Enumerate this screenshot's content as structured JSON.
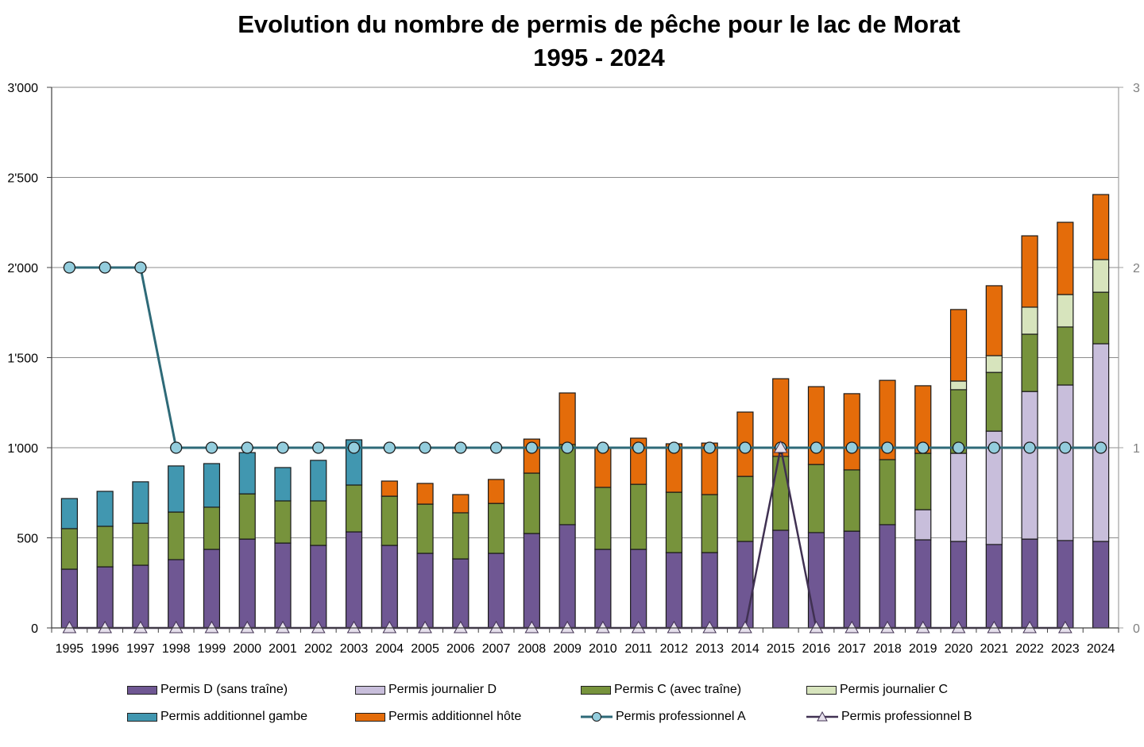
{
  "chart_data": {
    "type": "bar",
    "stacked": true,
    "title": "Evolution du nombre de permis de pêche pour le lac de Morat",
    "subtitle": "1995 - 2024",
    "xlabel": "",
    "ylabel": "",
    "ylim": [
      0,
      3000
    ],
    "y_ticks": [
      "0",
      "500",
      "1'000",
      "1'500",
      "2'000",
      "2'500",
      "3'000"
    ],
    "y_tick_values": [
      0,
      500,
      1000,
      1500,
      2000,
      2500,
      3000
    ],
    "y2lim": [
      0,
      3
    ],
    "y2_ticks": [
      "0",
      "1",
      "2",
      "3"
    ],
    "y2_tick_values": [
      0,
      1,
      2,
      3
    ],
    "grid": true,
    "legend_position": "bottom",
    "categories": [
      "1995",
      "1996",
      "1997",
      "1998",
      "1999",
      "2000",
      "2001",
      "2002",
      "2003",
      "2004",
      "2005",
      "2006",
      "2007",
      "2008",
      "2009",
      "2010",
      "2011",
      "2012",
      "2013",
      "2014",
      "2015",
      "2016",
      "2017",
      "2018",
      "2019",
      "2020",
      "2021",
      "2022",
      "2023",
      "2024"
    ],
    "series": [
      {
        "name": "Permis D (sans traîne)",
        "kind": "bar",
        "axis": "left",
        "color": "#6f5793",
        "values": [
          326,
          339,
          348,
          379,
          436,
          493,
          471,
          458,
          533,
          458,
          414,
          383,
          414,
          524,
          573,
          436,
          436,
          418,
          418,
          480,
          542,
          529,
          537,
          573,
          489,
          480,
          463,
          493,
          485,
          480
        ]
      },
      {
        "name": "Permis journalier D",
        "kind": "bar",
        "axis": "left",
        "color": "#c8bedb",
        "values": [
          0,
          0,
          0,
          0,
          0,
          0,
          0,
          0,
          0,
          0,
          0,
          0,
          0,
          0,
          0,
          0,
          0,
          0,
          0,
          0,
          0,
          0,
          0,
          0,
          167,
          489,
          629,
          819,
          863,
          1097
        ]
      },
      {
        "name": "Permis C (avec traîne)",
        "kind": "bar",
        "axis": "left",
        "color": "#77933c",
        "values": [
          225,
          225,
          233,
          264,
          234,
          251,
          234,
          247,
          260,
          273,
          273,
          256,
          277,
          335,
          445,
          344,
          361,
          335,
          322,
          361,
          410,
          378,
          340,
          361,
          313,
          353,
          326,
          318,
          322,
          286
        ]
      },
      {
        "name": "Permis journalier C",
        "kind": "bar",
        "axis": "left",
        "color": "#d7e4bd",
        "values": [
          0,
          0,
          0,
          0,
          0,
          0,
          0,
          0,
          0,
          0,
          0,
          0,
          0,
          0,
          0,
          0,
          0,
          0,
          0,
          0,
          0,
          0,
          0,
          0,
          0,
          48,
          93,
          150,
          180,
          181
        ]
      },
      {
        "name": "Permis additionnel gambe",
        "kind": "bar",
        "axis": "left",
        "color": "#4197b0",
        "values": [
          167,
          194,
          230,
          256,
          242,
          229,
          185,
          225,
          251,
          0,
          0,
          0,
          0,
          0,
          0,
          0,
          0,
          0,
          0,
          0,
          0,
          0,
          0,
          0,
          0,
          0,
          0,
          0,
          0,
          0
        ]
      },
      {
        "name": "Permis additionnel hôte",
        "kind": "bar",
        "axis": "left",
        "color": "#e46c0a",
        "values": [
          0,
          0,
          0,
          0,
          0,
          0,
          0,
          0,
          0,
          84,
          115,
          101,
          133,
          189,
          286,
          216,
          256,
          269,
          286,
          357,
          431,
          432,
          423,
          440,
          375,
          397,
          388,
          396,
          401,
          361
        ]
      },
      {
        "name": "Permis professionnel A",
        "kind": "line",
        "axis": "right",
        "color": "#2e6a78",
        "marker": "circle",
        "marker_color": "#93cddd",
        "values": [
          2,
          2,
          2,
          1,
          1,
          1,
          1,
          1,
          1,
          1,
          1,
          1,
          1,
          1,
          1,
          1,
          1,
          1,
          1,
          1,
          1,
          1,
          1,
          1,
          1,
          1,
          1,
          1,
          1,
          1
        ]
      },
      {
        "name": "Permis professionnel B",
        "kind": "line",
        "axis": "right",
        "color": "#403152",
        "marker": "triangle",
        "marker_color": "#e6e0ec",
        "values": [
          0,
          0,
          0,
          0,
          0,
          0,
          0,
          0,
          0,
          0,
          0,
          0,
          0,
          0,
          0,
          0,
          0,
          0,
          0,
          0,
          1,
          0,
          0,
          0,
          0,
          0,
          0,
          0,
          0,
          null
        ]
      }
    ]
  },
  "legend": [
    {
      "label": "Permis D (sans traîne)",
      "type": "box",
      "color": "#6f5793"
    },
    {
      "label": "Permis journalier D",
      "type": "box",
      "color": "#c8bedb"
    },
    {
      "label": "Permis C (avec traîne)",
      "type": "box",
      "color": "#77933c"
    },
    {
      "label": "Permis journalier C",
      "type": "box",
      "color": "#d7e4bd"
    },
    {
      "label": "Permis additionnel gambe",
      "type": "box",
      "color": "#4197b0"
    },
    {
      "label": "Permis additionnel hôte",
      "type": "box",
      "color": "#e46c0a"
    },
    {
      "label": "Permis professionnel A",
      "type": "line-circle",
      "color": "#2e6a78"
    },
    {
      "label": "Permis professionnel B",
      "type": "line-triangle",
      "color": "#403152"
    }
  ]
}
